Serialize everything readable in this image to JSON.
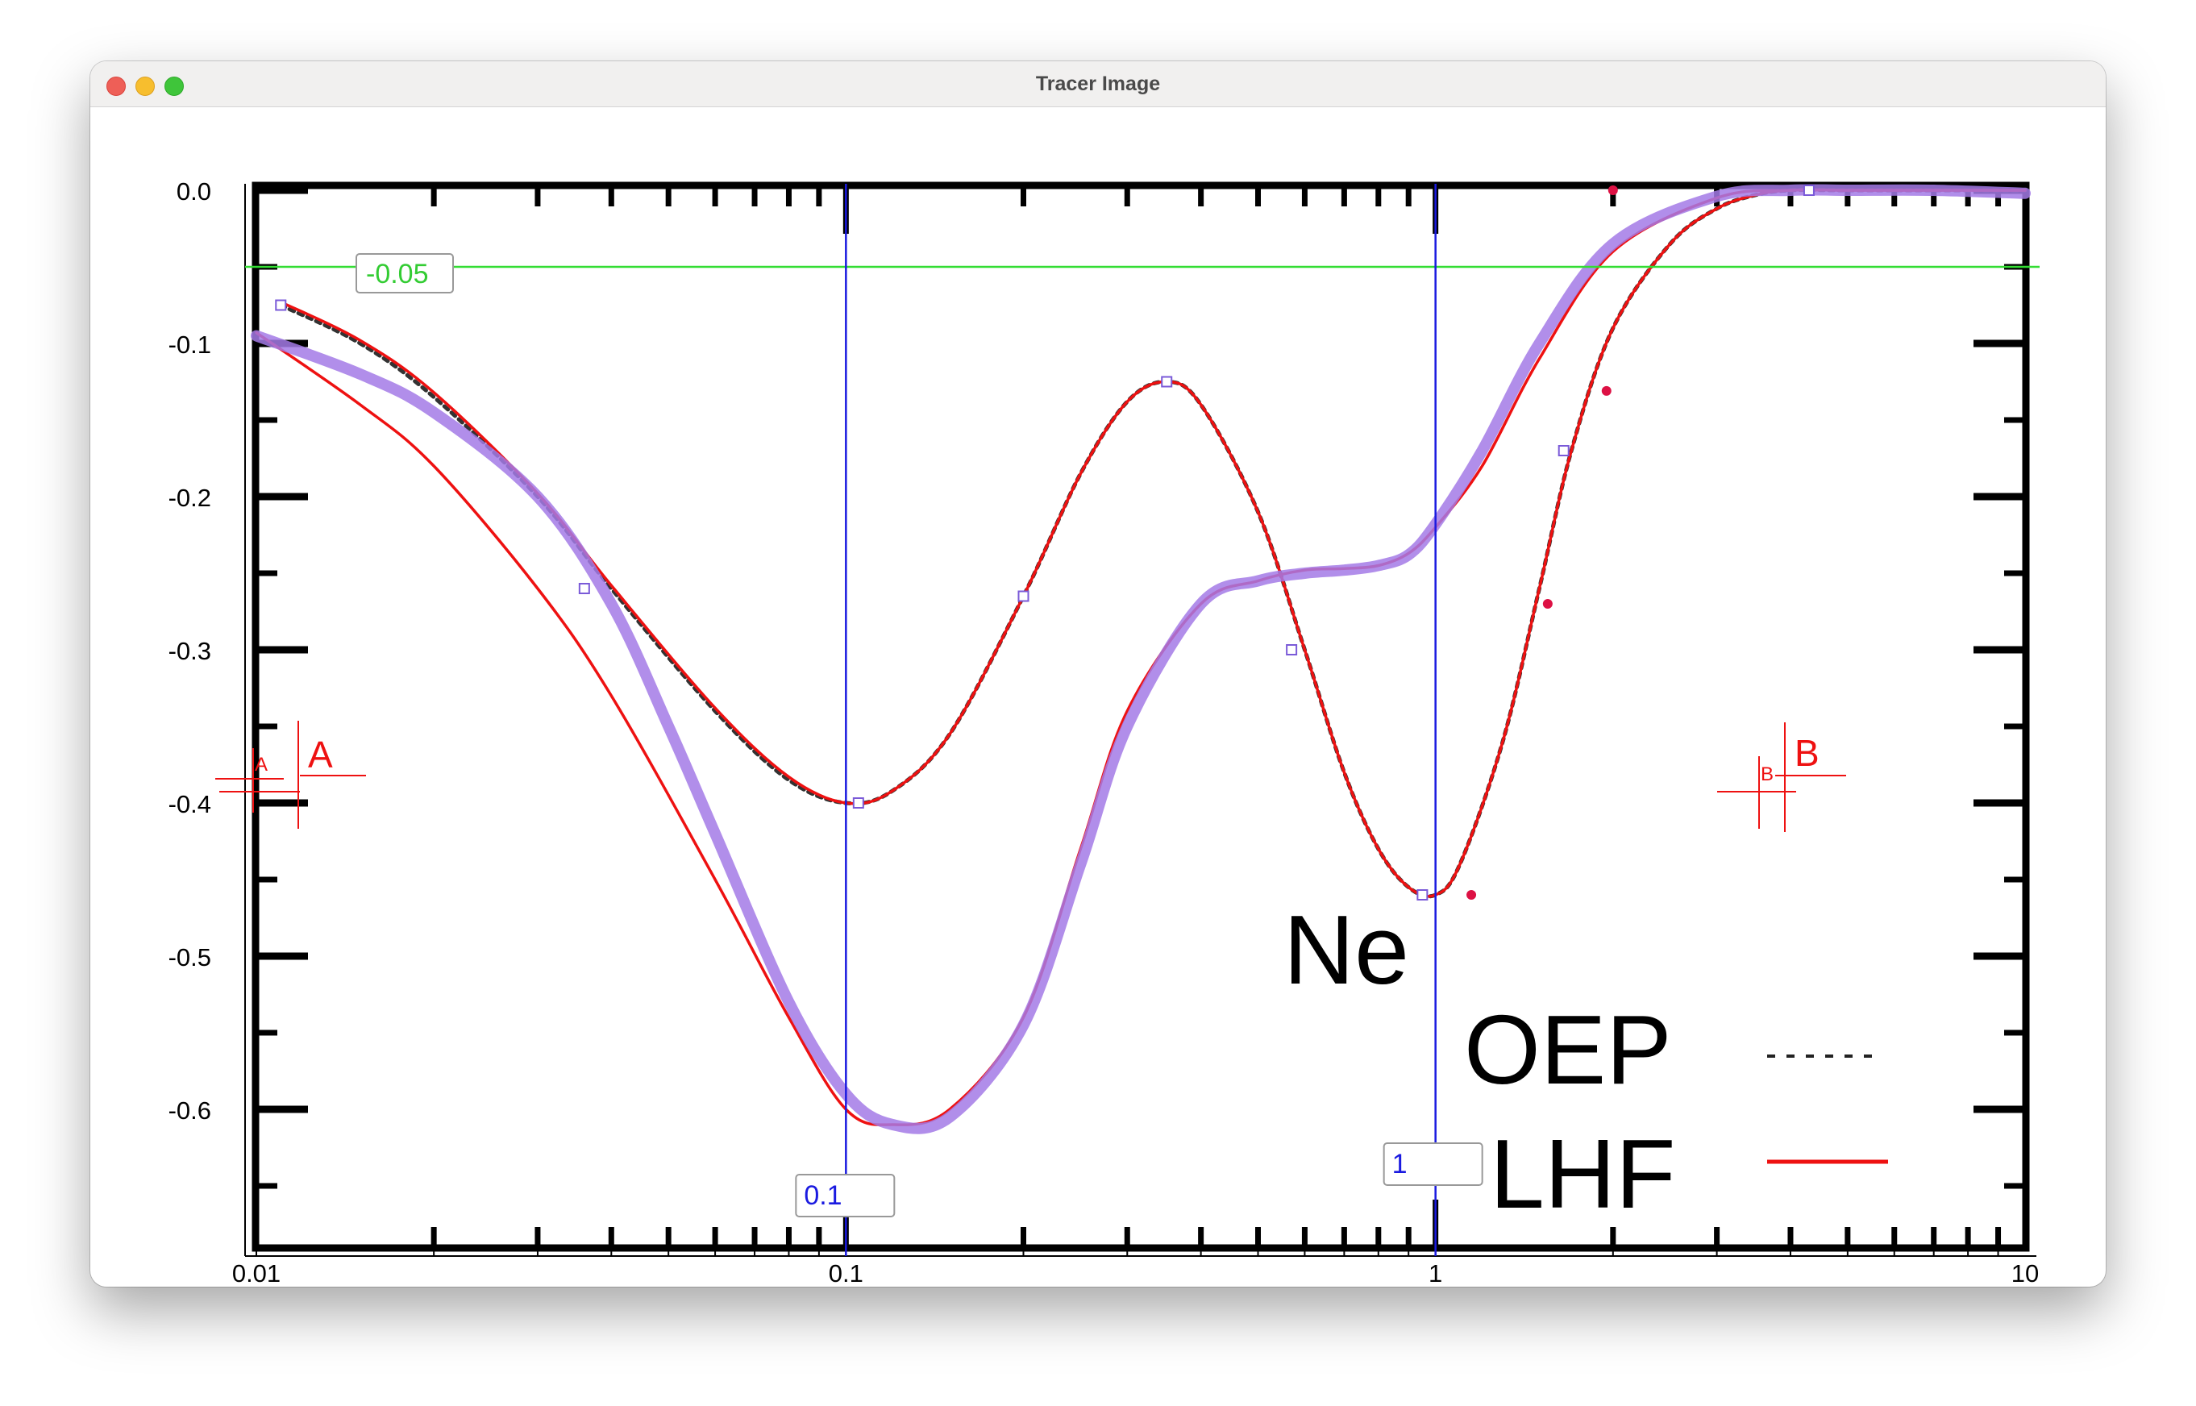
{
  "window": {
    "title": "Tracer Image"
  },
  "chart_data": {
    "type": "line",
    "xscale": "log",
    "xlim": [
      0.01,
      10
    ],
    "ylim": [
      -0.69,
      0.0
    ],
    "x_ticks": [
      "0.01",
      "0.1",
      "1",
      "10"
    ],
    "y_ticks": [
      "0.0",
      "-0.1",
      "-0.2",
      "-0.3",
      "-0.4",
      "-0.5",
      "-0.6"
    ],
    "annotations": {
      "element": "Ne"
    },
    "legend": [
      {
        "label": "OEP",
        "style": "dotted",
        "color": "#222222"
      },
      {
        "label": "LHF",
        "style": "solid",
        "color": "#ee1111"
      }
    ],
    "series": [
      {
        "name": "OEP",
        "color": "#333333",
        "x": [
          0.011,
          0.015,
          0.02,
          0.03,
          0.04,
          0.06,
          0.08,
          0.1,
          0.12,
          0.15,
          0.2,
          0.25,
          0.3,
          0.35,
          0.4,
          0.5,
          0.6,
          0.7,
          0.8,
          0.9,
          1.0,
          1.1,
          1.3,
          1.5,
          1.7,
          2.0,
          2.5,
          3.0,
          3.5,
          4.0,
          5.0,
          7.0,
          10.0
        ],
        "y": [
          -0.075,
          -0.1,
          -0.135,
          -0.2,
          -0.26,
          -0.34,
          -0.385,
          -0.4,
          -0.392,
          -0.355,
          -0.265,
          -0.185,
          -0.138,
          -0.125,
          -0.14,
          -0.21,
          -0.3,
          -0.38,
          -0.43,
          -0.455,
          -0.46,
          -0.44,
          -0.36,
          -0.26,
          -0.17,
          -0.09,
          -0.035,
          -0.012,
          -0.003,
          0.0,
          0.0,
          0.0,
          0.0
        ]
      },
      {
        "name": "LHF",
        "color": "#ee1111",
        "x": [
          0.011,
          0.015,
          0.02,
          0.03,
          0.04,
          0.06,
          0.08,
          0.1,
          0.12,
          0.15,
          0.2,
          0.25,
          0.3,
          0.35,
          0.4,
          0.5,
          0.6,
          0.7,
          0.8,
          0.9,
          1.0,
          1.1,
          1.3,
          1.5,
          1.7,
          2.0,
          2.5,
          3.0,
          3.5,
          4.0,
          5.0,
          7.0,
          10.0
        ],
        "y": [
          -0.073,
          -0.098,
          -0.132,
          -0.198,
          -0.258,
          -0.338,
          -0.383,
          -0.4,
          -0.392,
          -0.355,
          -0.265,
          -0.185,
          -0.138,
          -0.125,
          -0.14,
          -0.21,
          -0.3,
          -0.38,
          -0.43,
          -0.455,
          -0.46,
          -0.44,
          -0.36,
          -0.26,
          -0.17,
          -0.09,
          -0.035,
          -0.012,
          -0.003,
          0.0,
          0.0,
          0.0,
          0.0
        ]
      },
      {
        "name": "",
        "color": "#ee1111",
        "x": [
          0.01,
          0.015,
          0.02,
          0.03,
          0.04,
          0.06,
          0.08,
          0.1,
          0.12,
          0.15,
          0.2,
          0.25,
          0.3,
          0.4,
          0.5,
          0.6,
          0.7,
          0.8,
          0.9,
          1.0,
          1.2,
          1.5,
          2.0,
          3.0,
          4.0,
          5.0,
          7.0,
          10.0
        ],
        "y": [
          -0.093,
          -0.14,
          -0.18,
          -0.26,
          -0.33,
          -0.45,
          -0.54,
          -0.6,
          -0.61,
          -0.6,
          -0.54,
          -0.43,
          -0.34,
          -0.27,
          -0.255,
          -0.248,
          -0.247,
          -0.245,
          -0.237,
          -0.22,
          -0.18,
          -0.11,
          -0.04,
          -0.005,
          0.0,
          0.0,
          0.0,
          0.0
        ]
      },
      {
        "name": "",
        "color": "#a37ae6",
        "x": [
          0.01,
          0.015,
          0.02,
          0.03,
          0.04,
          0.05,
          0.06,
          0.08,
          0.1,
          0.12,
          0.15,
          0.2,
          0.25,
          0.3,
          0.4,
          0.5,
          0.6,
          0.7,
          0.8,
          0.9,
          1.0,
          1.2,
          1.5,
          2.0,
          3.0,
          4.0,
          5.0,
          7.0,
          10.0
        ],
        "y": [
          -0.095,
          -0.12,
          -0.145,
          -0.2,
          -0.27,
          -0.35,
          -0.42,
          -0.53,
          -0.59,
          -0.61,
          -0.605,
          -0.545,
          -0.44,
          -0.35,
          -0.27,
          -0.255,
          -0.25,
          -0.248,
          -0.245,
          -0.238,
          -0.218,
          -0.17,
          -0.1,
          -0.035,
          -0.004,
          0.0,
          0.0,
          0.0,
          -0.002
        ]
      }
    ]
  },
  "tracer": {
    "h_guide_label": "-0.05",
    "v_guide_labels": [
      "0.1",
      "1"
    ],
    "marker_a": {
      "small": "A",
      "large": "A"
    },
    "marker_b": {
      "small": "B",
      "large": "B"
    }
  },
  "colors": {
    "green_guide": "#33dd33",
    "blue_guide": "#1a1ae0",
    "marker_red": "#ee1111",
    "trace_purple": "#a37ae6"
  }
}
